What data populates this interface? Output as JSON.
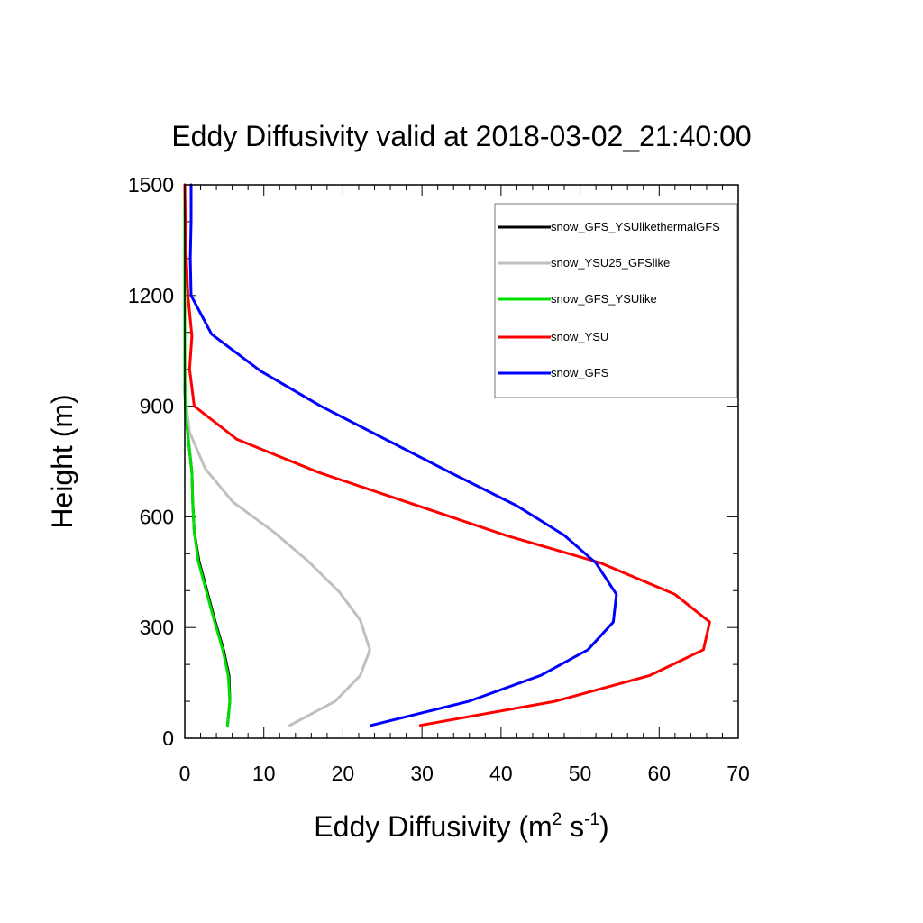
{
  "chart_data": {
    "type": "line",
    "title": "Eddy Diffusivity valid at 2018-03-02_21:40:00",
    "xlabel": {
      "base": "Eddy Diffusivity (m",
      "sup1": "2",
      "mid": " s",
      "sup2": "-1",
      "end": ")"
    },
    "ylabel": "Height (m)",
    "xlim": [
      0,
      70
    ],
    "ylim": [
      0,
      1500
    ],
    "xticks": [
      0,
      10,
      20,
      30,
      40,
      50,
      60,
      70
    ],
    "yticks": [
      0,
      300,
      600,
      900,
      1200,
      1500
    ],
    "grid": false,
    "legend_position": "top-right",
    "series": [
      {
        "name": "snow_GFS_YSUlikethermalGFS",
        "color": "#000000",
        "points": [
          [
            5.4,
            35
          ],
          [
            5.7,
            100
          ],
          [
            5.6,
            170
          ],
          [
            4.9,
            240
          ],
          [
            3.8,
            320
          ],
          [
            2.8,
            400
          ],
          [
            1.8,
            480
          ],
          [
            1.2,
            560
          ],
          [
            1.0,
            640
          ],
          [
            0.9,
            720
          ],
          [
            0.5,
            800
          ],
          [
            0.1,
            880
          ],
          [
            0.0,
            960
          ],
          [
            0.0,
            1050
          ],
          [
            0.0,
            1200
          ],
          [
            0.0,
            1350
          ],
          [
            0.0,
            1500
          ]
        ]
      },
      {
        "name": "snow_YSU25_GFSlike",
        "color": "#c0c0c0",
        "points": [
          [
            13.3,
            35
          ],
          [
            19.0,
            100
          ],
          [
            22.2,
            170
          ],
          [
            23.4,
            240
          ],
          [
            22.2,
            320
          ],
          [
            19.6,
            395
          ],
          [
            15.6,
            480
          ],
          [
            11.2,
            560
          ],
          [
            6.1,
            640
          ],
          [
            2.6,
            730
          ],
          [
            0.6,
            830
          ],
          [
            0.1,
            920
          ],
          [
            0.0,
            1050
          ],
          [
            0.0,
            1200
          ],
          [
            0.0,
            1350
          ],
          [
            0.0,
            1500
          ]
        ]
      },
      {
        "name": "snow_GFS_YSUlike",
        "color": "#00e000",
        "points": [
          [
            5.4,
            35
          ],
          [
            5.7,
            100
          ],
          [
            5.5,
            170
          ],
          [
            4.8,
            240
          ],
          [
            3.7,
            320
          ],
          [
            2.7,
            400
          ],
          [
            1.7,
            480
          ],
          [
            1.2,
            560
          ],
          [
            1.0,
            640
          ],
          [
            0.9,
            720
          ],
          [
            0.5,
            800
          ],
          [
            0.1,
            880
          ],
          [
            0.0,
            960
          ],
          [
            0.0,
            1050
          ],
          [
            0.0,
            1200
          ],
          [
            0.0,
            1350
          ],
          [
            0.0,
            1500
          ]
        ]
      },
      {
        "name": "snow_YSU",
        "color": "#ff0000",
        "points": [
          [
            29.8,
            35
          ],
          [
            46.8,
            100
          ],
          [
            58.8,
            170
          ],
          [
            65.6,
            240
          ],
          [
            66.4,
            315
          ],
          [
            62.0,
            390
          ],
          [
            52.6,
            475
          ],
          [
            40.6,
            550
          ],
          [
            17.0,
            720
          ],
          [
            6.6,
            810
          ],
          [
            1.2,
            900
          ],
          [
            0.6,
            1000
          ],
          [
            0.9,
            1090
          ],
          [
            0.4,
            1200
          ],
          [
            0.1,
            1350
          ],
          [
            0.0,
            1500
          ]
        ]
      },
      {
        "name": "snow_GFS",
        "color": "#0000ff",
        "points": [
          [
            23.6,
            35
          ],
          [
            35.9,
            100
          ],
          [
            45.0,
            170
          ],
          [
            51.0,
            240
          ],
          [
            54.2,
            315
          ],
          [
            54.6,
            390
          ],
          [
            52.0,
            475
          ],
          [
            48.0,
            550
          ],
          [
            42.0,
            630
          ],
          [
            33.6,
            720
          ],
          [
            17.2,
            900
          ],
          [
            9.6,
            995
          ],
          [
            3.4,
            1095
          ],
          [
            0.8,
            1200
          ],
          [
            0.7,
            1300
          ],
          [
            0.8,
            1400
          ],
          [
            0.8,
            1500
          ]
        ]
      }
    ]
  }
}
